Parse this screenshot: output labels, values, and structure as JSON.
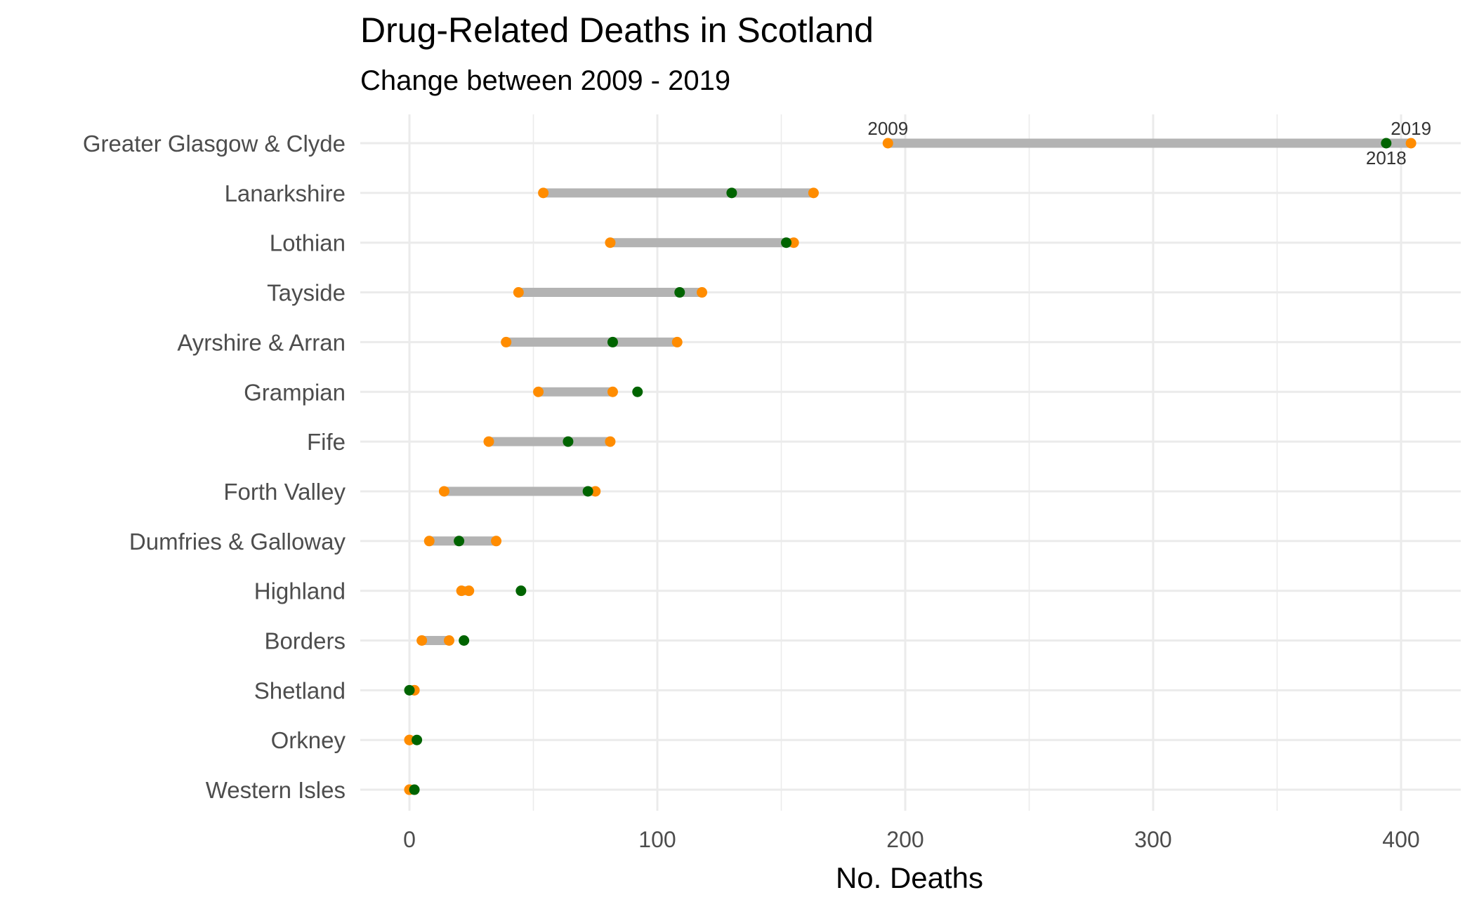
{
  "chart_data": {
    "type": "dumbbell",
    "title": "Drug-Related Deaths in Scotland",
    "subtitle": "Change between 2009 - 2019",
    "xlabel": "No. Deaths",
    "ylabel": "",
    "xlim": [
      -20,
      420
    ],
    "xticks": [
      0,
      100,
      200,
      300,
      400
    ],
    "grid": true,
    "colors": {
      "y2009": "#FF8C00",
      "y2018": "#006400",
      "y2019": "#FF8C00",
      "segment": "#b3b3b3"
    },
    "categories": [
      "Greater Glasgow & Clyde",
      "Lanarkshire",
      "Lothian",
      "Tayside",
      "Ayrshire & Arran",
      "Grampian",
      "Fife",
      "Forth Valley",
      "Dumfries & Galloway",
      "Highland",
      "Borders",
      "Shetland",
      "Orkney",
      "Western Isles"
    ],
    "series": [
      {
        "name": "2009",
        "values": [
          193,
          54,
          81,
          44,
          39,
          52,
          32,
          14,
          8,
          21,
          5,
          2,
          0,
          0
        ]
      },
      {
        "name": "2018",
        "values": [
          394,
          130,
          152,
          109,
          82,
          92,
          64,
          72,
          20,
          45,
          22,
          0,
          3,
          2
        ]
      },
      {
        "name": "2019",
        "values": [
          404,
          163,
          155,
          118,
          108,
          82,
          81,
          75,
          35,
          24,
          16,
          2,
          0,
          0
        ]
      }
    ],
    "annotations": [
      {
        "text": "2009",
        "category": "Greater Glasgow & Clyde",
        "series": "2009",
        "position": "above"
      },
      {
        "text": "2019",
        "category": "Greater Glasgow & Clyde",
        "series": "2019",
        "position": "above"
      },
      {
        "text": "2018",
        "category": "Greater Glasgow & Clyde",
        "series": "2018",
        "position": "below"
      }
    ]
  }
}
